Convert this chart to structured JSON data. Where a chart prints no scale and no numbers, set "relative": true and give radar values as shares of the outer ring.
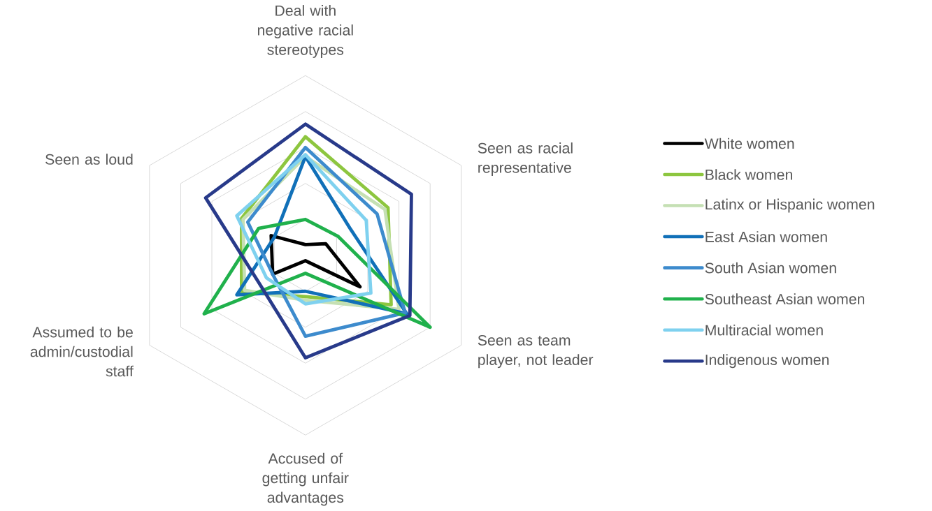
{
  "chart_data": {
    "type": "radar",
    "relative": true,
    "grid": true,
    "legend": "right",
    "categories": [
      "Deal with negative racial stereotypes",
      "Seen as racial representative",
      "Seen as team player, not leader",
      "Accused of getting unfair advantages",
      "Assumed to be admin/custodial staff",
      "Seen as loud"
    ],
    "series": [
      {
        "name": "White women",
        "color": "#000000",
        "values": [
          0.06,
          0.13,
          0.35,
          0.03,
          0.21,
          0.22
        ]
      },
      {
        "name": "Black women",
        "color": "#8dc63f",
        "values": [
          0.66,
          0.53,
          0.55,
          0.23,
          0.41,
          0.41
        ]
      },
      {
        "name": "Latinx or Hispanic women",
        "color": "#c5e0b4",
        "values": [
          0.55,
          0.51,
          0.6,
          0.25,
          0.39,
          0.4
        ]
      },
      {
        "name": "East Asian women",
        "color": "#1170b8",
        "values": [
          0.55,
          0.29,
          0.65,
          0.2,
          0.44,
          0.2
        ]
      },
      {
        "name": "South Asian women",
        "color": "#3d8bcd",
        "values": [
          0.6,
          0.46,
          0.64,
          0.45,
          0.21,
          0.37
        ]
      },
      {
        "name": "Southeast Asian women",
        "color": "#20b14c",
        "values": [
          0.2,
          0.21,
          0.8,
          0.1,
          0.65,
          0.3
        ]
      },
      {
        "name": "Multiracial women",
        "color": "#7fd1ef",
        "values": [
          0.56,
          0.39,
          0.42,
          0.27,
          0.25,
          0.44
        ]
      },
      {
        "name": "Indigenous women",
        "color": "#283a8a",
        "values": [
          0.73,
          0.68,
          0.67,
          0.57,
          0.3,
          0.64
        ]
      }
    ]
  }
}
